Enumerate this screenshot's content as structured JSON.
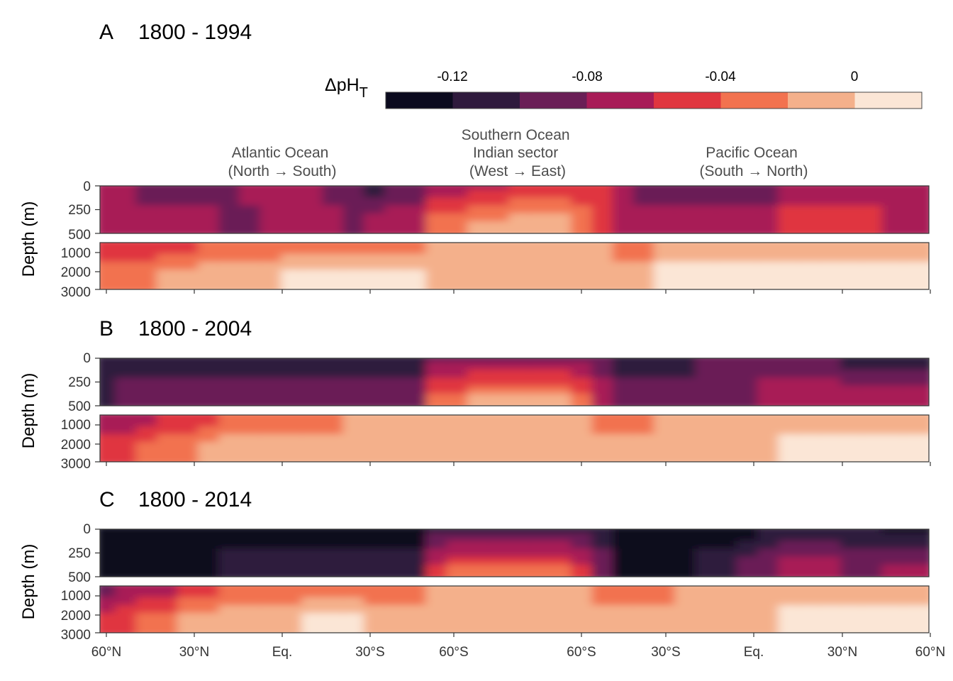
{
  "chart_data": {
    "type": "heatmap",
    "legend": {
      "title": "ΔpH",
      "title_subscript": "T",
      "placement": "top",
      "breaks": [
        "-0.12",
        "-0.08",
        "-0.04",
        "0"
      ],
      "colors": [
        "#0b0a1e",
        "#2f1a3d",
        "#6a1f56",
        "#a81c57",
        "#e0363f",
        "#f2724f",
        "#f4b08b",
        "#fbe6d6"
      ]
    },
    "ocean_labels": [
      {
        "lines": [
          "Atlantic Ocean",
          "(North → South)"
        ]
      },
      {
        "lines": [
          "Southern Ocean",
          "Indian sector",
          "(West → East)"
        ]
      },
      {
        "lines": [
          "Pacific Ocean",
          "(South → North)"
        ]
      }
    ],
    "x_tick_labels": [
      "60°N",
      "30°N",
      "Eq.",
      "30°S",
      "60°S",
      "60°S",
      "30°S",
      "Eq.",
      "30°N",
      "60°N"
    ],
    "y_label": "Depth (m)",
    "y_ticks_upper": [
      "0",
      "250",
      "500"
    ],
    "y_ticks_lower": [
      "1000",
      "2000",
      "3000"
    ],
    "panels": [
      {
        "letter": "A",
        "period": "1800 - 1994",
        "surface_level": [
          4,
          4,
          3,
          3,
          3,
          3,
          3,
          4,
          4,
          4,
          4,
          3,
          3,
          2,
          3,
          3,
          4,
          4,
          4,
          4,
          5,
          5,
          5,
          5,
          5,
          4,
          3,
          3,
          3,
          3,
          3,
          3,
          3,
          4,
          4,
          4,
          4,
          4,
          4,
          4
        ],
        "mid_level": [
          4,
          4,
          4,
          4,
          4,
          4,
          3,
          3,
          4,
          4,
          4,
          4,
          3,
          4,
          4,
          4,
          6,
          6,
          7,
          7,
          7,
          7,
          7,
          6,
          5,
          4,
          4,
          4,
          4,
          4,
          4,
          4,
          4,
          5,
          5,
          5,
          5,
          5,
          4,
          4
        ],
        "deep_mid_level": [
          5,
          5,
          5,
          5,
          5,
          6,
          6,
          6,
          6,
          6,
          6,
          6,
          6,
          6,
          6,
          6,
          7,
          7,
          7,
          7,
          7,
          7,
          7,
          7,
          7,
          6,
          6,
          7,
          7,
          7,
          7,
          7,
          7,
          7,
          7,
          7,
          7,
          7,
          7,
          7
        ],
        "deep_level": [
          6,
          6,
          6,
          7,
          7,
          7,
          7,
          7,
          7,
          8,
          8,
          8,
          8,
          8,
          8,
          8,
          7,
          7,
          7,
          7,
          7,
          7,
          7,
          7,
          7,
          7,
          7,
          8,
          8,
          8,
          8,
          8,
          8,
          8,
          8,
          8,
          8,
          8,
          8,
          8
        ]
      },
      {
        "letter": "B",
        "period": "1800 - 2004",
        "surface_level": [
          2,
          2,
          2,
          2,
          2,
          2,
          2,
          2,
          2,
          2,
          2,
          2,
          2,
          2,
          2,
          2,
          3,
          3,
          3,
          3,
          3,
          3,
          3,
          3,
          3,
          2,
          2,
          2,
          2,
          3,
          3,
          3,
          3,
          3,
          3,
          3,
          2,
          2,
          2,
          2
        ],
        "mid_level": [
          2,
          3,
          3,
          3,
          3,
          3,
          3,
          3,
          3,
          3,
          3,
          3,
          3,
          3,
          3,
          3,
          6,
          6,
          7,
          7,
          7,
          7,
          7,
          6,
          4,
          3,
          3,
          3,
          3,
          3,
          3,
          3,
          4,
          4,
          4,
          4,
          4,
          4,
          4,
          4
        ],
        "deep_mid_level": [
          4,
          4,
          4,
          5,
          5,
          5,
          6,
          6,
          6,
          6,
          6,
          6,
          7,
          7,
          7,
          7,
          7,
          7,
          7,
          7,
          7,
          7,
          7,
          7,
          6,
          6,
          6,
          7,
          7,
          7,
          7,
          7,
          7,
          7,
          7,
          7,
          7,
          7,
          7,
          7
        ],
        "deep_level": [
          5,
          5,
          6,
          6,
          6,
          7,
          7,
          7,
          7,
          7,
          7,
          7,
          7,
          7,
          7,
          7,
          7,
          7,
          7,
          7,
          7,
          7,
          7,
          7,
          7,
          7,
          7,
          7,
          7,
          7,
          7,
          7,
          7,
          8,
          8,
          8,
          8,
          8,
          8,
          8
        ]
      },
      {
        "letter": "C",
        "period": "1800 - 2014",
        "surface_level": [
          1,
          1,
          1,
          1,
          1,
          1,
          1,
          1,
          1,
          1,
          1,
          1,
          1,
          1,
          1,
          1,
          2,
          2,
          2,
          2,
          2,
          2,
          2,
          2,
          2,
          1,
          1,
          1,
          1,
          1,
          1,
          1,
          2,
          2,
          2,
          2,
          2,
          2,
          1,
          1
        ],
        "mid_level": [
          1,
          1,
          1,
          1,
          1,
          1,
          2,
          2,
          2,
          2,
          2,
          2,
          2,
          2,
          2,
          2,
          5,
          6,
          6,
          6,
          6,
          6,
          6,
          5,
          3,
          1,
          1,
          1,
          1,
          2,
          2,
          3,
          3,
          4,
          4,
          4,
          3,
          3,
          4,
          4
        ],
        "deep_mid_level": [
          3,
          4,
          4,
          4,
          5,
          5,
          6,
          6,
          6,
          6,
          6,
          6,
          6,
          6,
          6,
          6,
          7,
          7,
          7,
          7,
          7,
          7,
          7,
          7,
          6,
          6,
          6,
          6,
          7,
          7,
          7,
          7,
          7,
          7,
          7,
          7,
          7,
          7,
          7,
          7
        ],
        "deep_level": [
          5,
          5,
          6,
          6,
          7,
          7,
          7,
          7,
          7,
          7,
          8,
          8,
          8,
          7,
          7,
          7,
          7,
          7,
          7,
          7,
          7,
          7,
          7,
          7,
          7,
          7,
          7,
          7,
          7,
          7,
          7,
          7,
          7,
          8,
          8,
          8,
          8,
          8,
          8,
          8
        ]
      }
    ]
  }
}
